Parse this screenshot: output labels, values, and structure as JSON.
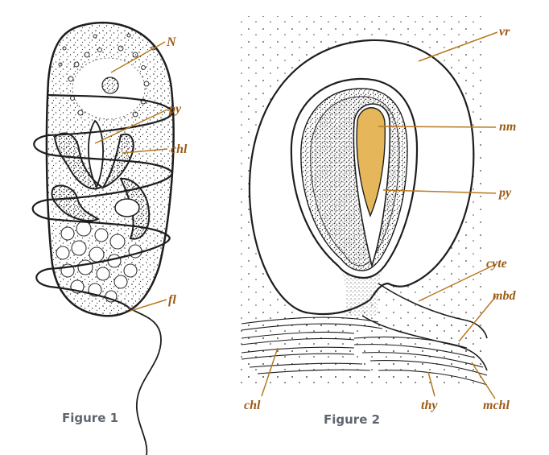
{
  "figure1": {
    "caption": "Figure 1",
    "labels": {
      "nucleus": "N",
      "pyrenoid": "py",
      "chloroplast": "chl",
      "flagellum": "fl"
    }
  },
  "figure2": {
    "caption": "Figure 2",
    "labels": {
      "vacuole": "vr",
      "nuclear_material": "nm",
      "pyrenoid": "py",
      "cytoplasm": "cyte",
      "membrane": "mbd",
      "chloroplast": "chl",
      "thylakoid": "thy",
      "chloroplast_membrane": "mchl"
    }
  },
  "colors": {
    "label": "#9b5b16",
    "leader": "#b7791f",
    "nm_fill": "#e5b65a",
    "ink": "#1e1e1e",
    "caption": "#5f6670"
  }
}
